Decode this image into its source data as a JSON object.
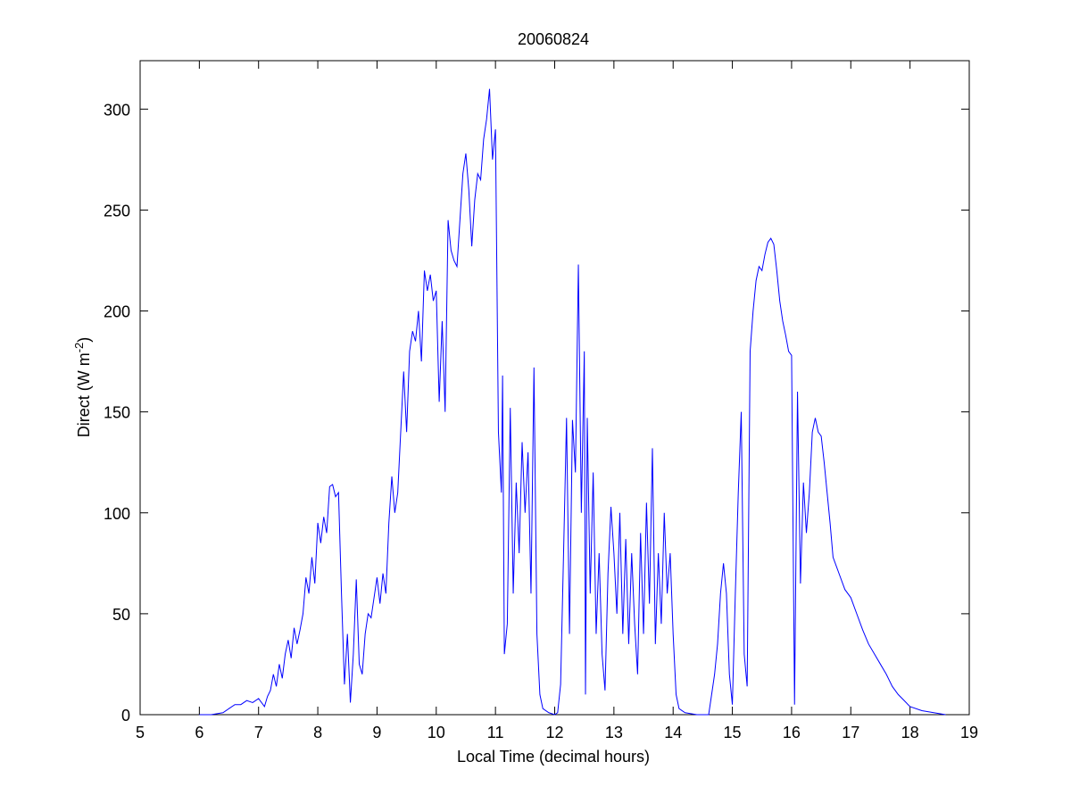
{
  "chart_data": {
    "type": "line",
    "title": "20060824",
    "xlabel": "Local Time (decimal hours)",
    "ylabel": [
      "Direct (W m",
      "-2",
      ")"
    ],
    "xlim": [
      5,
      19
    ],
    "xticks": [
      5,
      6,
      7,
      8,
      9,
      10,
      11,
      12,
      13,
      14,
      15,
      16,
      17,
      18,
      19
    ],
    "ylim": [
      0,
      324
    ],
    "yticks": [
      0,
      50,
      100,
      150,
      200,
      250,
      300
    ],
    "series": [
      {
        "color": "#0000ff",
        "x": [
          6.0,
          6.2,
          6.4,
          6.5,
          6.6,
          6.7,
          6.8,
          6.9,
          7.0,
          7.1,
          7.15,
          7.2,
          7.25,
          7.3,
          7.35,
          7.4,
          7.45,
          7.5,
          7.55,
          7.6,
          7.65,
          7.7,
          7.75,
          7.8,
          7.85,
          7.9,
          7.95,
          8.0,
          8.05,
          8.1,
          8.15,
          8.2,
          8.25,
          8.3,
          8.35,
          8.4,
          8.45,
          8.5,
          8.55,
          8.6,
          8.65,
          8.7,
          8.75,
          8.8,
          8.85,
          8.9,
          8.95,
          9.0,
          9.05,
          9.1,
          9.15,
          9.2,
          9.25,
          9.3,
          9.35,
          9.4,
          9.45,
          9.5,
          9.55,
          9.6,
          9.65,
          9.7,
          9.75,
          9.8,
          9.85,
          9.9,
          9.95,
          10.0,
          10.05,
          10.1,
          10.15,
          10.2,
          10.25,
          10.3,
          10.35,
          10.4,
          10.45,
          10.5,
          10.55,
          10.6,
          10.65,
          10.7,
          10.75,
          10.8,
          10.85,
          10.9,
          10.95,
          11.0,
          11.05,
          11.1,
          11.12,
          11.15,
          11.2,
          11.25,
          11.3,
          11.35,
          11.4,
          11.45,
          11.5,
          11.55,
          11.6,
          11.65,
          11.7,
          11.75,
          11.8,
          11.9,
          12.0,
          12.05,
          12.1,
          12.15,
          12.2,
          12.25,
          12.3,
          12.35,
          12.4,
          12.45,
          12.5,
          12.52,
          12.55,
          12.6,
          12.65,
          12.7,
          12.75,
          12.8,
          12.85,
          12.9,
          12.95,
          13.0,
          13.05,
          13.1,
          13.15,
          13.2,
          13.25,
          13.3,
          13.35,
          13.4,
          13.45,
          13.5,
          13.55,
          13.6,
          13.65,
          13.7,
          13.75,
          13.8,
          13.85,
          13.9,
          13.95,
          14.0,
          14.05,
          14.1,
          14.2,
          14.4,
          14.6,
          14.65,
          14.7,
          14.75,
          14.8,
          14.85,
          14.9,
          14.95,
          15.0,
          15.05,
          15.1,
          15.15,
          15.2,
          15.25,
          15.3,
          15.35,
          15.4,
          15.45,
          15.5,
          15.55,
          15.6,
          15.65,
          15.7,
          15.75,
          15.8,
          15.85,
          15.9,
          15.95,
          16.0,
          16.05,
          16.1,
          16.15,
          16.2,
          16.25,
          16.3,
          16.35,
          16.4,
          16.45,
          16.5,
          16.55,
          16.6,
          16.65,
          16.7,
          16.8,
          16.9,
          17.0,
          17.1,
          17.2,
          17.3,
          17.4,
          17.5,
          17.6,
          17.7,
          17.8,
          17.9,
          18.0,
          18.2,
          18.4,
          18.6
        ],
        "values": [
          0,
          0,
          1,
          3,
          5,
          5,
          7,
          6,
          8,
          4,
          9,
          12,
          20,
          14,
          25,
          18,
          30,
          37,
          28,
          43,
          35,
          42,
          50,
          68,
          60,
          78,
          65,
          95,
          85,
          98,
          90,
          113,
          114,
          108,
          110,
          60,
          15,
          40,
          6,
          30,
          67,
          25,
          20,
          40,
          50,
          48,
          58,
          68,
          55,
          70,
          60,
          95,
          118,
          100,
          110,
          140,
          170,
          140,
          180,
          190,
          185,
          200,
          175,
          220,
          210,
          218,
          205,
          210,
          155,
          195,
          150,
          245,
          230,
          225,
          222,
          245,
          268,
          278,
          260,
          232,
          255,
          268,
          265,
          285,
          295,
          310,
          275,
          290,
          140,
          110,
          168,
          30,
          45,
          152,
          60,
          115,
          80,
          135,
          100,
          130,
          60,
          172,
          40,
          10,
          3,
          1,
          0,
          1,
          15,
          80,
          147,
          40,
          146,
          120,
          223,
          100,
          180,
          10,
          147,
          60,
          120,
          40,
          80,
          30,
          12,
          70,
          103,
          80,
          50,
          100,
          40,
          87,
          35,
          80,
          45,
          20,
          90,
          40,
          105,
          55,
          132,
          35,
          80,
          45,
          100,
          60,
          80,
          40,
          10,
          3,
          1,
          0,
          0,
          10,
          20,
          35,
          60,
          75,
          60,
          20,
          5,
          60,
          110,
          150,
          30,
          14,
          180,
          200,
          215,
          222,
          220,
          228,
          234,
          236,
          233,
          220,
          205,
          195,
          188,
          180,
          178,
          5,
          160,
          65,
          115,
          90,
          110,
          140,
          147,
          140,
          138,
          125,
          110,
          95,
          78,
          70,
          62,
          58,
          50,
          42,
          35,
          30,
          25,
          20,
          14,
          10,
          7,
          4,
          2,
          1,
          0
        ]
      }
    ]
  }
}
